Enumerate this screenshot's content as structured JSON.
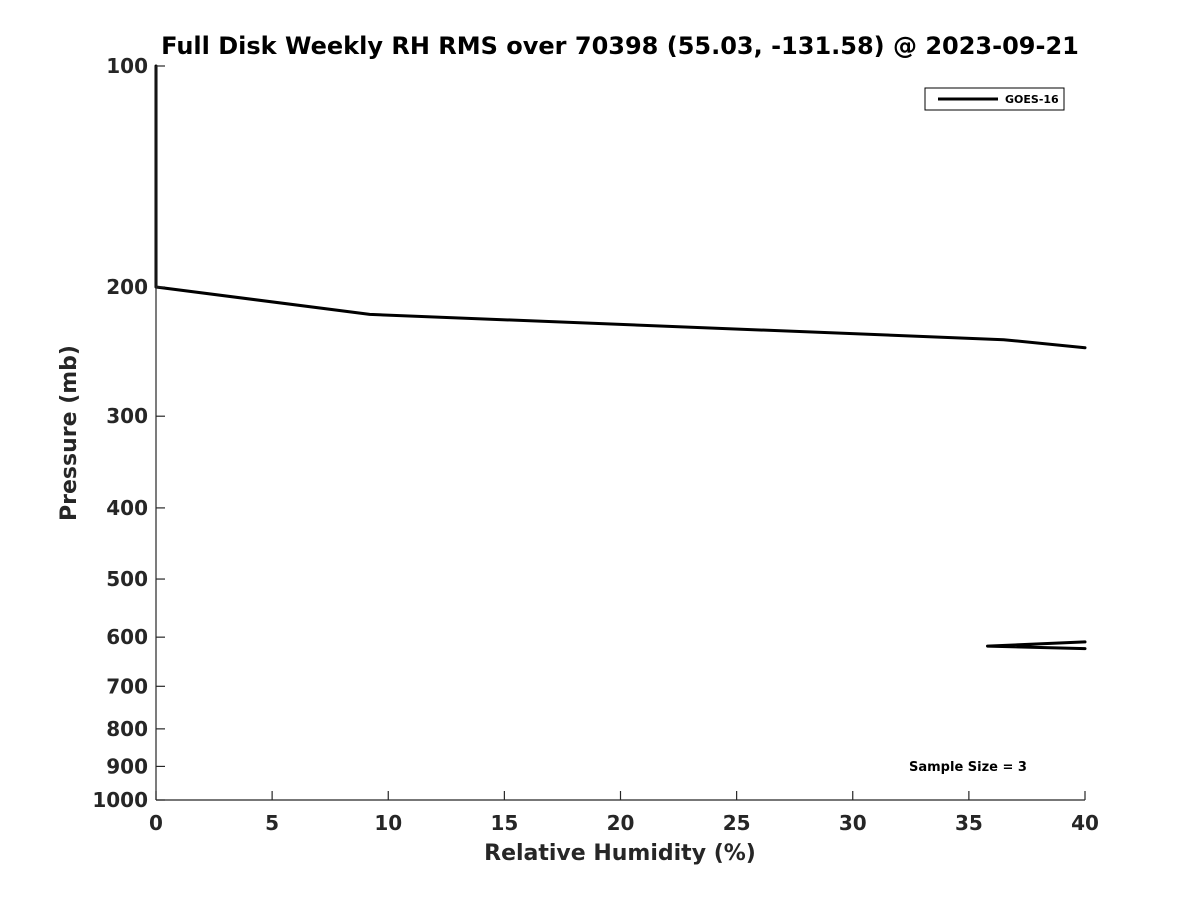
{
  "chart_data": {
    "type": "line",
    "title": "Full Disk Weekly RH RMS over 70398 (55.03, -131.58) @ 2023-09-21",
    "xlabel": "Relative Humidity (%)",
    "ylabel": "Pressure (mb)",
    "xlim": [
      0,
      40
    ],
    "ylim": [
      100,
      1000
    ],
    "yscale": "log",
    "yaxis_reversed": true,
    "grid": false,
    "legend_position": "top-right",
    "x_ticks": [
      0,
      5,
      10,
      15,
      20,
      25,
      30,
      35,
      40
    ],
    "x_tick_labels": [
      "0",
      "5",
      "10",
      "15",
      "20",
      "25",
      "30",
      "35",
      "40"
    ],
    "y_ticks": [
      100,
      200,
      300,
      400,
      500,
      600,
      700,
      800,
      900,
      1000
    ],
    "y_tick_labels": [
      "100",
      "200",
      "300",
      "400",
      "500",
      "600",
      "700",
      "800",
      "900",
      "1000"
    ],
    "series": [
      {
        "name": "GOES-16",
        "color": "#000000",
        "segments": [
          [
            {
              "x": 0,
              "y": 100
            },
            {
              "x": 0,
              "y": 150
            },
            {
              "x": 0,
              "y": 200
            },
            {
              "x": 9.2,
              "y": 218
            },
            {
              "x": 36.5,
              "y": 236
            },
            {
              "x": 40,
              "y": 242
            }
          ],
          [
            {
              "x": 40,
              "y": 609
            },
            {
              "x": 35.8,
              "y": 617
            },
            {
              "x": 40,
              "y": 622
            }
          ]
        ]
      }
    ],
    "annotations": [
      {
        "text": "Sample Size = 3",
        "position": "bottom-right"
      }
    ]
  }
}
